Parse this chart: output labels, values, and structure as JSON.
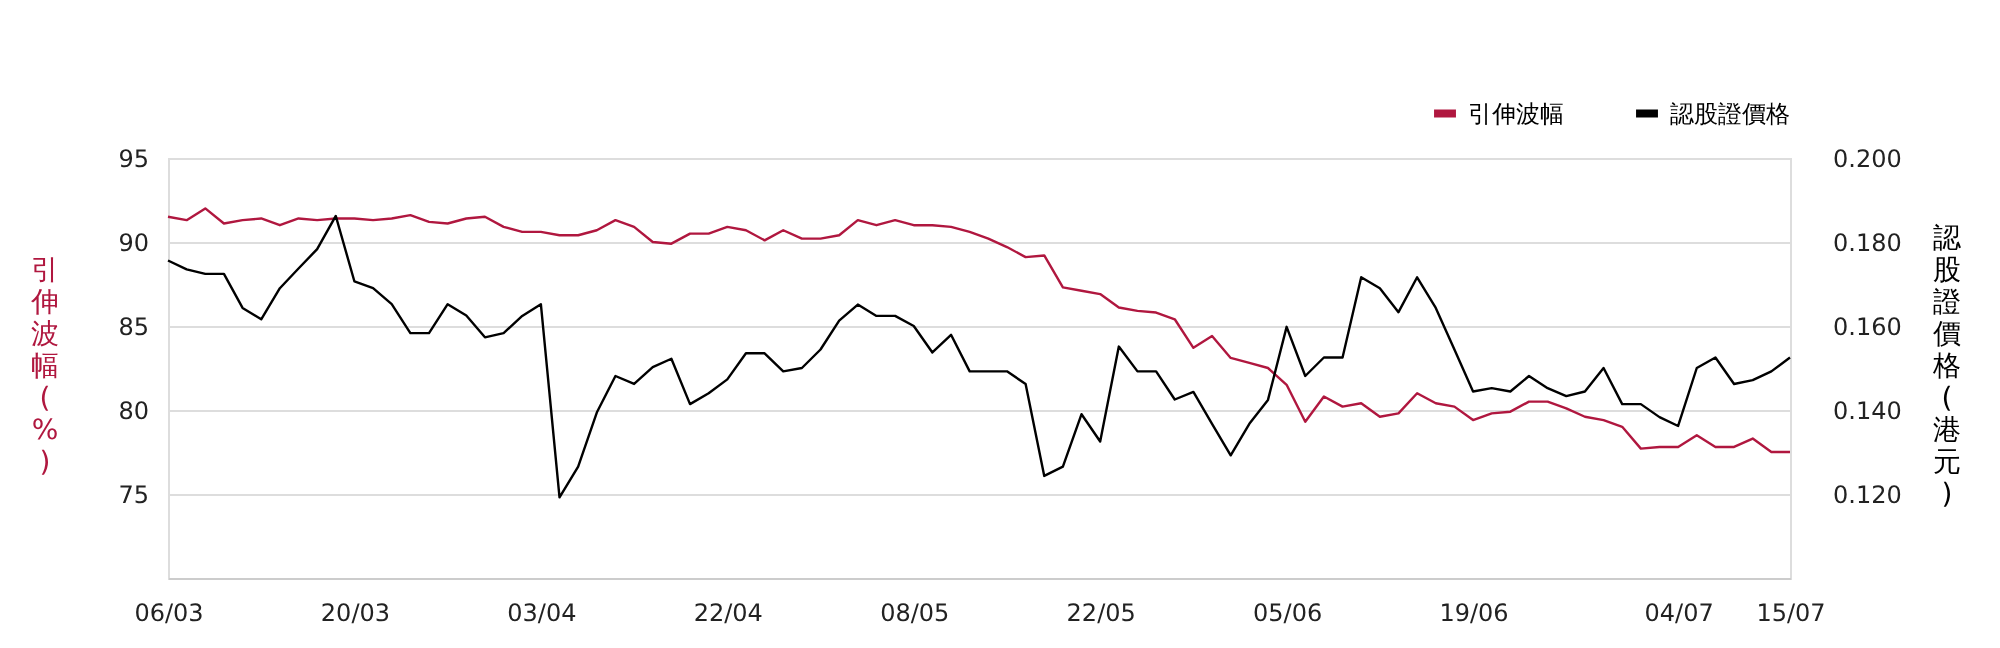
{
  "chart_data": {
    "type": "line",
    "ylabel": "引伸波幅(%)",
    "y2label": "認股證價格(港元)",
    "categories": [
      "06/03",
      null,
      null,
      null,
      null,
      null,
      null,
      null,
      null,
      null,
      "20/03",
      null,
      null,
      null,
      null,
      null,
      null,
      null,
      null,
      null,
      "03/04",
      null,
      null,
      null,
      null,
      null,
      null,
      null,
      null,
      null,
      "22/04",
      null,
      null,
      null,
      null,
      null,
      null,
      null,
      null,
      null,
      "08/05",
      null,
      null,
      null,
      null,
      null,
      null,
      null,
      null,
      null,
      "22/05",
      null,
      null,
      null,
      null,
      null,
      null,
      null,
      null,
      null,
      "05/06",
      null,
      null,
      null,
      null,
      null,
      null,
      null,
      null,
      null,
      "19/06",
      null,
      null,
      null,
      null,
      null,
      null,
      null,
      null,
      null,
      null,
      "04/07",
      null,
      null,
      null,
      null,
      null,
      "15/07"
    ],
    "series": [
      {
        "name": "引伸波幅",
        "color": "#b0173f",
        "values": [
          91.5,
          91.3,
          92.0,
          91.1,
          91.3,
          91.4,
          91.0,
          91.4,
          91.3,
          91.4,
          91.4,
          91.3,
          91.4,
          91.6,
          91.2,
          91.1,
          91.4,
          91.5,
          90.9,
          90.6,
          90.6,
          90.4,
          90.4,
          90.7,
          91.3,
          90.9,
          90.0,
          89.9,
          90.5,
          90.5,
          90.9,
          90.7,
          90.1,
          90.7,
          90.2,
          90.2,
          90.4,
          91.3,
          91.0,
          91.3,
          91.0,
          91.0,
          90.9,
          90.6,
          90.2,
          89.7,
          89.1,
          89.2,
          87.3,
          87.1,
          86.9,
          86.1,
          85.9,
          85.8,
          85.4,
          83.7,
          84.4,
          83.1,
          82.8,
          82.5,
          81.5,
          79.3,
          80.8,
          80.2,
          80.4,
          79.6,
          79.8,
          81.0,
          80.4,
          80.2,
          79.4,
          79.8,
          79.9,
          80.5,
          80.5,
          80.1,
          79.6,
          79.4,
          79.0,
          77.7,
          77.8,
          77.8,
          78.5,
          77.8,
          77.8,
          78.3,
          77.5,
          77.5
        ]
      },
      {
        "name": "認股證價格",
        "color": "#000000",
        "axis": "y2",
        "values": [
          0.1756,
          0.1735,
          0.1724,
          0.1724,
          0.1643,
          0.1616,
          0.169,
          0.1737,
          0.1783,
          0.1862,
          0.1706,
          0.169,
          0.1652,
          0.1583,
          0.1583,
          0.1652,
          0.1625,
          0.1573,
          0.1583,
          0.1624,
          0.1652,
          0.1192,
          0.1265,
          0.1394,
          0.1481,
          0.1462,
          0.1502,
          0.1522,
          0.1414,
          0.144,
          0.1473,
          0.1535,
          0.1535,
          0.1492,
          0.15,
          0.1544,
          0.1613,
          0.1651,
          0.1624,
          0.1624,
          0.16,
          0.1537,
          0.1579,
          0.1492,
          0.1492,
          0.1492,
          0.1462,
          0.1243,
          0.1265,
          0.139,
          0.1325,
          0.1551,
          0.1492,
          0.1492,
          0.1425,
          0.1443,
          0.1367,
          0.1292,
          0.1367,
          0.1424,
          0.1598,
          0.1481,
          0.1525,
          0.1525,
          0.1716,
          0.169,
          0.1633,
          0.1716,
          0.1643,
          0.1544,
          0.1444,
          0.1452,
          0.1444,
          0.1481,
          0.1452,
          0.1433,
          0.1444,
          0.15,
          0.1414,
          0.1414,
          0.1383,
          0.1362,
          0.15,
          0.1525,
          0.1462,
          0.1471,
          0.1492,
          0.1525
        ]
      }
    ],
    "ylim": [
      70,
      95
    ],
    "yticks": [
      75,
      80,
      85,
      90,
      95
    ],
    "y2lim": [
      0.1,
      0.2
    ],
    "y2ticks": [
      {
        "value": 0.12,
        "label": "0.120"
      },
      {
        "value": 0.14,
        "label": "0.140"
      },
      {
        "value": 0.16,
        "label": "0.160"
      },
      {
        "value": 0.18,
        "label": "0.180"
      },
      {
        "value": 0.2,
        "label": "0.200"
      }
    ],
    "grid": "y",
    "legend": "top right",
    "marker": "none",
    "line_style": "solid"
  }
}
